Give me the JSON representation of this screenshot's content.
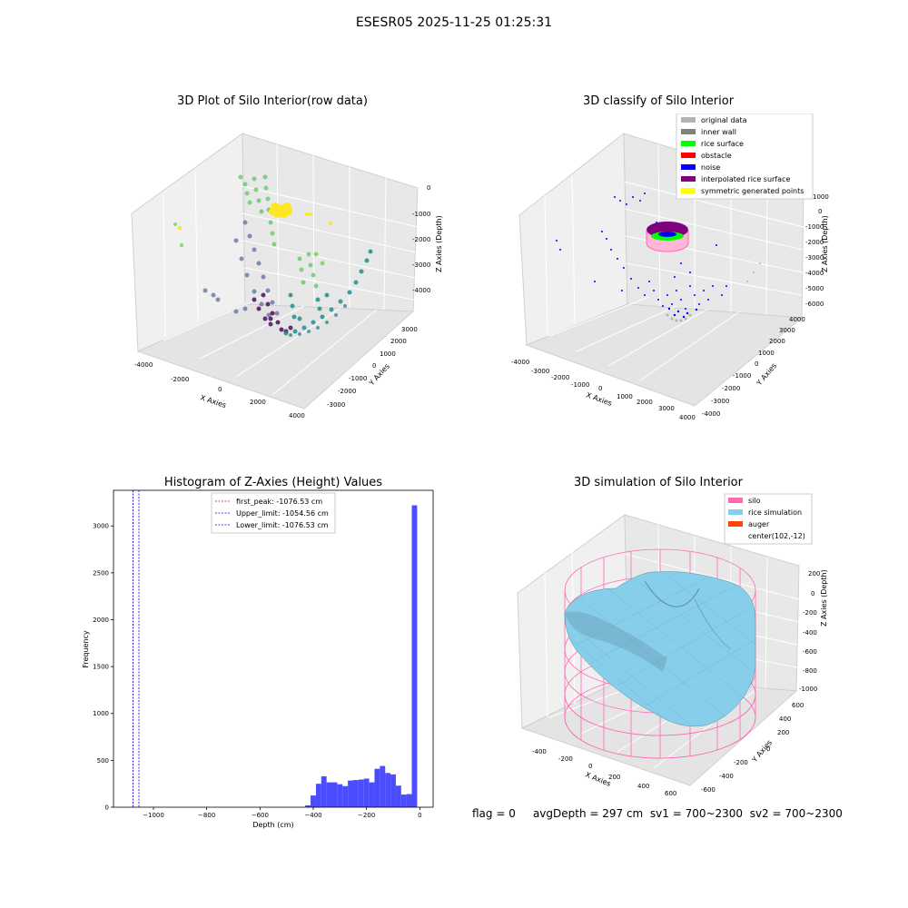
{
  "suptitle": "ESESR05 2025-11-25 01:25:31",
  "panels": {
    "raw": {
      "title": "3D Plot of Silo Interior(row data)",
      "xlabel": "X Axies",
      "ylabel": "Y Axies",
      "zlabel": "Z Axies (Depth)",
      "xticks": [
        "-4000",
        "-2000",
        "0",
        "2000",
        "4000"
      ],
      "yticks": [
        "-3000",
        "-2000",
        "-1000",
        "0",
        "1000",
        "2000",
        "3000"
      ],
      "zticks": [
        "-4000",
        "-3000",
        "-2000",
        "-1000",
        "0"
      ]
    },
    "classify": {
      "title": "3D classify of Silo Interior",
      "xlabel": "X Axies",
      "ylabel": "Y Axies",
      "zlabel": "Z Axies (Depth)",
      "xticks": [
        "-4000",
        "-3000",
        "-2000",
        "-1000",
        "0",
        "1000",
        "2000",
        "3000",
        "4000"
      ],
      "yticks": [
        "-4000",
        "-3000",
        "-2000",
        "-1000",
        "0",
        "1000",
        "2000",
        "3000",
        "4000"
      ],
      "zticks": [
        "-6000",
        "-5000",
        "-4000",
        "-3000",
        "-2000",
        "-1000",
        "0",
        "1000"
      ],
      "legend": [
        {
          "label": "original data",
          "color": "#b3b3b3"
        },
        {
          "label": "inner wall",
          "color": "#808080"
        },
        {
          "label": "rice surface",
          "color": "#00ff00"
        },
        {
          "label": "obstacle",
          "color": "#ff0000"
        },
        {
          "label": "noise",
          "color": "#0000ff"
        },
        {
          "label": "interpolated rice surface",
          "color": "#800080"
        },
        {
          "label": "symmetric generated points",
          "color": "#ffff00"
        }
      ]
    },
    "simulation": {
      "title": "3D simulation of Silo Interior",
      "xlabel": "X Axies",
      "ylabel": "Y Axies",
      "zlabel": "Z Axies (Depth)",
      "xticks": [
        "-400",
        "-200",
        "0",
        "200",
        "400",
        "600"
      ],
      "yticks": [
        "-600",
        "-400",
        "-200",
        "0",
        "200",
        "400",
        "600"
      ],
      "zticks": [
        "-1000",
        "-800",
        "-600",
        "-400",
        "-200",
        "0",
        "200"
      ],
      "legend": [
        {
          "label": "silo",
          "color": "#ff69b4"
        },
        {
          "label": "rice simulation",
          "color": "#87ceeb"
        },
        {
          "label": "auger",
          "color": "#ff4500"
        },
        {
          "label": "center(102,-12)",
          "color": ""
        }
      ]
    }
  },
  "chart_data": [
    {
      "type": "bar",
      "title": "Histogram of Z-Axies (Height) Values",
      "xlabel": "Depth (cm)",
      "ylabel": "Frequency",
      "xlim": [
        -1150,
        50
      ],
      "ylim": [
        0,
        3380
      ],
      "xticks": [
        -1000,
        -800,
        -600,
        -400,
        -200,
        0
      ],
      "yticks": [
        0,
        500,
        1000,
        1500,
        2000,
        2500,
        3000
      ],
      "bar_color": "#4b4bff",
      "bins": [
        {
          "x0": -430,
          "x1": -410,
          "count": 20
        },
        {
          "x0": -410,
          "x1": -390,
          "count": 125
        },
        {
          "x0": -390,
          "x1": -370,
          "count": 250
        },
        {
          "x0": -370,
          "x1": -350,
          "count": 330
        },
        {
          "x0": -350,
          "x1": -330,
          "count": 265
        },
        {
          "x0": -330,
          "x1": -310,
          "count": 265
        },
        {
          "x0": -310,
          "x1": -290,
          "count": 245
        },
        {
          "x0": -290,
          "x1": -270,
          "count": 225
        },
        {
          "x0": -270,
          "x1": -250,
          "count": 285
        },
        {
          "x0": -250,
          "x1": -230,
          "count": 290
        },
        {
          "x0": -230,
          "x1": -210,
          "count": 295
        },
        {
          "x0": -210,
          "x1": -190,
          "count": 305
        },
        {
          "x0": -190,
          "x1": -170,
          "count": 265
        },
        {
          "x0": -170,
          "x1": -150,
          "count": 410
        },
        {
          "x0": -150,
          "x1": -130,
          "count": 440
        },
        {
          "x0": -130,
          "x1": -110,
          "count": 365
        },
        {
          "x0": -110,
          "x1": -90,
          "count": 350
        },
        {
          "x0": -90,
          "x1": -70,
          "count": 230
        },
        {
          "x0": -70,
          "x1": -50,
          "count": 135
        },
        {
          "x0": -50,
          "x1": -30,
          "count": 140
        },
        {
          "x0": -30,
          "x1": -10,
          "count": 3220
        }
      ],
      "lines": [
        {
          "label": "first_peak: -1076.53 cm",
          "x": -1076.53,
          "color": "#ff0000"
        },
        {
          "label": "Upper_limit: -1054.56 cm",
          "x": -1054.56,
          "color": "#0000ff"
        },
        {
          "label": "Lower_limit: -1076.53 cm",
          "x": -1076.53,
          "color": "#0000ff"
        }
      ],
      "legend_position": "top-center"
    }
  ],
  "status": {
    "flag": "flag = 0",
    "avg": "avgDepth = 297 cm",
    "sv1": "sv1 = 700~2300",
    "sv2": "sv2 = 700~2300"
  }
}
